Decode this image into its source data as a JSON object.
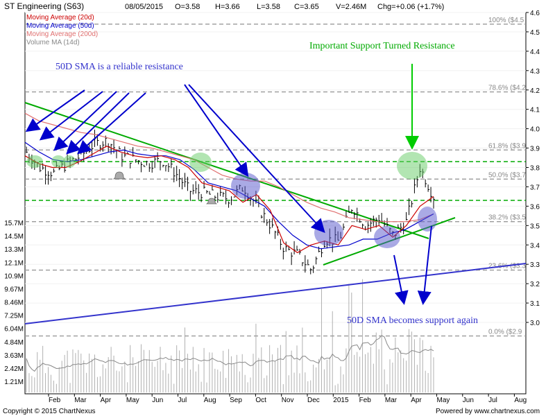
{
  "header": {
    "title": "ST Engineering (S63)",
    "date": "08/05/2015",
    "open": "O=3.58",
    "high": "H=3.66",
    "low": "L=3.58",
    "close": "C=3.65",
    "volume": "V=2.46M",
    "change": "Chg=+0.06 (+1.7%)"
  },
  "legend": [
    {
      "label": "Moving Average (20d)",
      "color": "#cc0000"
    },
    {
      "label": "Moving Average (50d)",
      "color": "#0000cc"
    },
    {
      "label": "Moving Average (200d)",
      "color": "#e07070"
    },
    {
      "label": "Volume MA (14d)",
      "color": "#888888"
    }
  ],
  "annotations": {
    "resistance_note": "50D SMA is a reliable resistance",
    "support_turned_resistance": "Important Support Turned Resistance",
    "support_again": "50D SMA becomes support again"
  },
  "footer": {
    "copyright": "Copyright © 2015 ChartNexus",
    "powered": "Powered by www.chartnexus.com"
  },
  "colors": {
    "price": "#000000",
    "ma20": "#cc0000",
    "ma50": "#0000cc",
    "ma200": "#e07070",
    "volume": "#b0b0b0",
    "trendline": "#00aa00",
    "arrow_blue": "#0000cc",
    "arrow_green": "#00cc00"
  },
  "chart_data": {
    "type": "line",
    "title": "ST Engineering (S63)",
    "x_tick_labels": [
      "Feb",
      "Mar",
      "Apr",
      "May",
      "Jun",
      "Jul",
      "Aug",
      "Sep",
      "Oct",
      "Nov",
      "Dec",
      "2015",
      "Feb",
      "Mar",
      "Apr",
      "May",
      "Jun",
      "Jul",
      "Aug"
    ],
    "y_ticks": [
      "4.6",
      "4.5",
      "4.4",
      "4.3",
      "4.2",
      "4.1",
      "4.0",
      "3.9",
      "3.8",
      "3.7",
      "3.6",
      "3.5",
      "3.4",
      "3.3",
      "3.2",
      "3.1",
      "3.0"
    ],
    "ylim": [
      2.95,
      4.6
    ],
    "volume_ticks": [
      "15.7M",
      "14.5M",
      "13.3M",
      "12.1M",
      "10.9M",
      "9.67M",
      "8.46M",
      "7.25M",
      "6.04M",
      "4.84M",
      "3.63M",
      "2.42M",
      "1.21M"
    ],
    "fibonacci_levels": [
      {
        "label": "100%",
        "value_label": "($4.5",
        "price": 4.54
      },
      {
        "label": "78.6%",
        "value_label": "($4.2",
        "price": 4.19
      },
      {
        "label": "61.8%",
        "value_label": "($3.9",
        "price": 3.89
      },
      {
        "label": "50.0%",
        "value_label": "($3.7",
        "price": 3.74
      },
      {
        "label": "38.2%",
        "value_label": "($3.5",
        "price": 3.52
      },
      {
        "label": "23.6%",
        "value_label": "($3.3",
        "price": 3.27
      },
      {
        "label": "0.0%",
        "value_label": "($2.9",
        "price": 2.93
      }
    ],
    "horizontal_levels": [
      3.83,
      3.63
    ],
    "series": [
      {
        "name": "Moving Average (20d)",
        "values": [
          3.86,
          3.82,
          3.8,
          3.8,
          3.83,
          3.87,
          3.91,
          3.88,
          3.86,
          3.85,
          3.86,
          3.84,
          3.8,
          3.72,
          3.7,
          3.68,
          3.62,
          3.66,
          3.58,
          3.41,
          3.36,
          3.4,
          3.42,
          3.4,
          3.5,
          3.48,
          3.5,
          3.44,
          3.5,
          3.6,
          3.65
        ]
      },
      {
        "name": "Moving Average (50d)",
        "values": [
          3.93,
          3.88,
          3.84,
          3.83,
          3.84,
          3.86,
          3.88,
          3.89,
          3.87,
          3.86,
          3.86,
          3.84,
          3.79,
          3.72,
          3.7,
          3.68,
          3.64,
          3.6,
          3.52,
          3.45,
          3.4,
          3.38,
          3.39,
          3.4,
          3.43,
          3.43,
          3.46,
          3.48,
          3.52,
          3.56
        ]
      },
      {
        "name": "Moving Average (200d)",
        "values": [
          4.08,
          4.04,
          4.02,
          4.0,
          3.98,
          3.97,
          3.95,
          3.93,
          3.91,
          3.9,
          3.88,
          3.86,
          3.84,
          3.8,
          3.76,
          3.74,
          3.73,
          3.73,
          3.7,
          3.66,
          3.62,
          3.59,
          3.57,
          3.54,
          3.53,
          3.52,
          3.52,
          3.52,
          3.53,
          3.56
        ]
      }
    ],
    "price_close": [
      3.88,
      3.8,
      3.77,
      3.82,
      3.86,
      3.92,
      3.94,
      3.86,
      3.84,
      3.82,
      3.84,
      3.77,
      3.68,
      3.67,
      3.65,
      3.64,
      3.7,
      3.6,
      3.5,
      3.38,
      3.35,
      3.27,
      3.43,
      3.42,
      3.6,
      3.5,
      3.54,
      3.45,
      3.52,
      3.8,
      3.65
    ]
  }
}
